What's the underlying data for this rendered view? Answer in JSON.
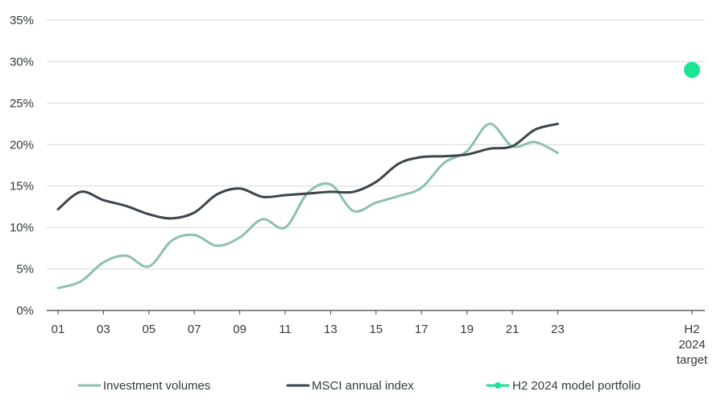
{
  "chart_data": {
    "type": "line",
    "title": "",
    "xlabel": "",
    "ylabel": "",
    "ylim": [
      0,
      35
    ],
    "y_ticks": [
      0,
      5,
      10,
      15,
      20,
      25,
      30,
      35
    ],
    "y_tick_labels": [
      "0%",
      "5%",
      "10%",
      "15%",
      "20%",
      "25%",
      "30%",
      "35%"
    ],
    "x_tick_labels": [
      "01",
      "03",
      "05",
      "07",
      "09",
      "11",
      "13",
      "15",
      "17",
      "19",
      "21",
      "23"
    ],
    "target_label_lines": [
      "H2",
      "2024",
      "target"
    ],
    "grid": true,
    "legend_position": "bottom",
    "series": [
      {
        "name": "Investment volumes",
        "color": "#8dc0b1",
        "x": [
          1,
          2,
          3,
          4,
          5,
          6,
          7,
          8,
          9,
          10,
          11,
          12,
          13,
          14,
          15,
          16,
          17,
          18,
          19,
          20,
          21,
          22,
          23
        ],
        "values": [
          2.7,
          3.5,
          5.8,
          6.6,
          5.3,
          8.4,
          9.1,
          7.8,
          8.8,
          11.0,
          10.0,
          14.2,
          15.2,
          12.0,
          13.0,
          13.8,
          14.8,
          17.8,
          19.2,
          22.5,
          19.8,
          20.3,
          19.0
        ]
      },
      {
        "name": "MSCI annual index",
        "color": "#3c464a",
        "x": [
          1,
          2,
          3,
          4,
          5,
          6,
          7,
          8,
          9,
          10,
          11,
          12,
          13,
          14,
          15,
          16,
          17,
          18,
          19,
          20,
          21,
          22,
          23
        ],
        "values": [
          12.2,
          14.3,
          13.3,
          12.6,
          11.6,
          11.1,
          11.8,
          14.0,
          14.7,
          13.7,
          13.9,
          14.1,
          14.3,
          14.3,
          15.5,
          17.7,
          18.5,
          18.6,
          18.8,
          19.5,
          19.8,
          21.8,
          22.5
        ]
      },
      {
        "name": "H2 2024 model portfolio",
        "color": "#1de394",
        "x": [
          "H2 2024 target"
        ],
        "values": [
          29.0
        ]
      }
    ]
  }
}
